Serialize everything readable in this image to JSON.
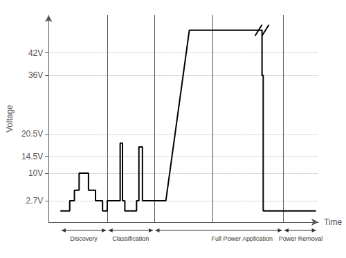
{
  "chart_data": {
    "type": "line",
    "xlabel": "Time",
    "ylabel": "Voltage",
    "x": [
      0.0,
      0.4,
      0.4,
      0.6,
      0.6,
      0.8,
      0.8,
      1.2,
      1.2,
      1.5,
      1.5,
      1.8,
      1.8,
      2.0,
      2.0,
      2.2,
      2.5,
      2.55,
      2.55,
      2.65,
      2.65,
      2.75,
      2.75,
      2.8,
      3.2,
      3.25,
      3.25,
      3.35,
      3.35,
      3.5,
      3.5,
      4.0,
      4.0,
      4.5,
      5.5,
      7.5,
      7.5,
      8.5,
      8.6,
      8.6,
      8.65,
      8.65,
      9.5,
      9.5,
      10.9
    ],
    "values": [
      0,
      0,
      2.7,
      2.7,
      5.5,
      5.5,
      10,
      10,
      5.5,
      5.5,
      2.7,
      2.7,
      0,
      0,
      2.7,
      2.7,
      2.7,
      2.7,
      18,
      18,
      2.7,
      2.7,
      0,
      0,
      0,
      0,
      2.7,
      2.7,
      17,
      17,
      2.7,
      2.7,
      2.7,
      2.7,
      48,
      48,
      48,
      48,
      48,
      36,
      36,
      0,
      0,
      0,
      0
    ],
    "color": "#000000",
    "xlim": [
      -0.5,
      11
    ],
    "ylim": [
      -3,
      52
    ],
    "yticks": [
      {
        "value": 2.7,
        "label": "2.7V"
      },
      {
        "value": 10,
        "label": "10V"
      },
      {
        "value": 14.5,
        "label": "14.5V"
      },
      {
        "value": 20.5,
        "label": "20.5V"
      },
      {
        "value": 36,
        "label": "36V"
      },
      {
        "value": 42,
        "label": "42V"
      }
    ],
    "tick_labels": "y",
    "grid": true,
    "phase_lines": {
      "x": [
        2.0,
        4.0,
        6.5,
        9.5
      ],
      "color": "#555555"
    },
    "phases": [
      {
        "label": "Discovery",
        "x": 1.0,
        "from": 0.05,
        "to": 1.95
      },
      {
        "label": "Classification",
        "x": 3.0,
        "from": 2.05,
        "to": 3.95
      },
      {
        "label": "Full Power Application",
        "x": 7.75,
        "from": 4.05,
        "to": 9.45
      },
      {
        "label": "Power Removal",
        "x": 10.25,
        "from": 9.55,
        "to": 10.9
      }
    ],
    "break_mark": {
      "x": 8.6,
      "y": 48
    }
  }
}
